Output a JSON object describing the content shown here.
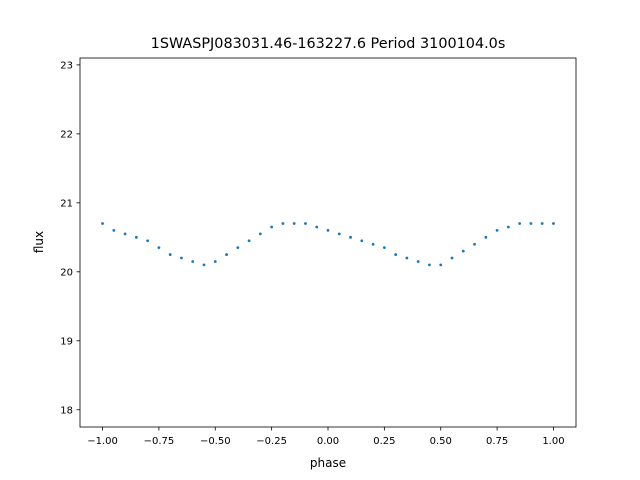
{
  "chart_data": {
    "type": "scatter",
    "title": "1SWASPJ083031.46-163227.6 Period 3100104.0s",
    "xlabel": "phase",
    "ylabel": "flux",
    "xlim": [
      -1.1,
      1.1
    ],
    "ylim": [
      17.75,
      23.1
    ],
    "xticks": [
      -1.0,
      -0.75,
      -0.5,
      -0.25,
      0.0,
      0.25,
      0.5,
      0.75,
      1.0
    ],
    "xtick_labels": [
      "−1.00",
      "−0.75",
      "−0.50",
      "−0.25",
      "0.00",
      "0.25",
      "0.50",
      "0.75",
      "1.00"
    ],
    "yticks": [
      18,
      19,
      20,
      21,
      22,
      23
    ],
    "ytick_labels": [
      "18",
      "19",
      "20",
      "21",
      "22",
      "23"
    ],
    "grid": false,
    "legend": "none",
    "marker_color": "#1f77b4",
    "series": [
      {
        "x": [
          -1.0,
          -0.95,
          -0.9,
          -0.85,
          -0.8,
          -0.75,
          -0.7,
          -0.65,
          -0.6,
          -0.55,
          -0.5,
          -0.45,
          -0.4,
          -0.35,
          -0.3,
          -0.25,
          -0.2,
          -0.15,
          -0.1,
          -0.05,
          0.0,
          0.05,
          0.1,
          0.15,
          0.2,
          0.25,
          0.3,
          0.35,
          0.4,
          0.45,
          0.5,
          0.55,
          0.6,
          0.65,
          0.7,
          0.75,
          0.8,
          0.85,
          0.9,
          0.95,
          1.0
        ],
        "y": [
          20.7,
          20.6,
          20.55,
          20.5,
          20.45,
          20.35,
          20.25,
          20.2,
          20.15,
          20.1,
          20.15,
          20.25,
          20.35,
          20.45,
          20.55,
          20.65,
          20.7,
          20.7,
          20.7,
          20.65,
          20.6,
          20.55,
          20.5,
          20.45,
          20.4,
          20.35,
          20.25,
          20.2,
          20.15,
          20.1,
          20.1,
          20.2,
          20.3,
          20.4,
          20.5,
          20.6,
          20.65,
          20.7,
          20.7,
          20.7,
          20.7
        ]
      }
    ]
  }
}
